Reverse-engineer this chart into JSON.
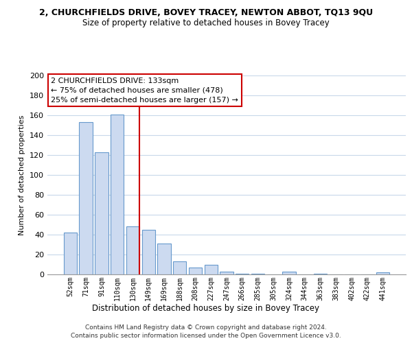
{
  "title1": "2, CHURCHFIELDS DRIVE, BOVEY TRACEY, NEWTON ABBOT, TQ13 9QU",
  "title2": "Size of property relative to detached houses in Bovey Tracey",
  "xlabel": "Distribution of detached houses by size in Bovey Tracey",
  "ylabel": "Number of detached properties",
  "bar_labels": [
    "52sqm",
    "71sqm",
    "91sqm",
    "110sqm",
    "130sqm",
    "149sqm",
    "169sqm",
    "188sqm",
    "208sqm",
    "227sqm",
    "247sqm",
    "266sqm",
    "285sqm",
    "305sqm",
    "324sqm",
    "344sqm",
    "363sqm",
    "383sqm",
    "402sqm",
    "422sqm",
    "441sqm"
  ],
  "bar_values": [
    42,
    153,
    123,
    161,
    48,
    45,
    31,
    13,
    7,
    10,
    3,
    1,
    1,
    0,
    3,
    0,
    1,
    0,
    0,
    0,
    2
  ],
  "bar_color": "#ccdaf0",
  "bar_edge_color": "#6699cc",
  "vline_index": 4,
  "vline_color": "#cc0000",
  "ylim": [
    0,
    200
  ],
  "yticks": [
    0,
    20,
    40,
    60,
    80,
    100,
    120,
    140,
    160,
    180,
    200
  ],
  "annotation_lines": [
    "2 CHURCHFIELDS DRIVE: 133sqm",
    "← 75% of detached houses are smaller (478)",
    "25% of semi-detached houses are larger (157) →"
  ],
  "footer_line1": "Contains HM Land Registry data © Crown copyright and database right 2024.",
  "footer_line2": "Contains public sector information licensed under the Open Government Licence v3.0.",
  "grid_color": "#c8d8ea",
  "background_color": "#ffffff"
}
